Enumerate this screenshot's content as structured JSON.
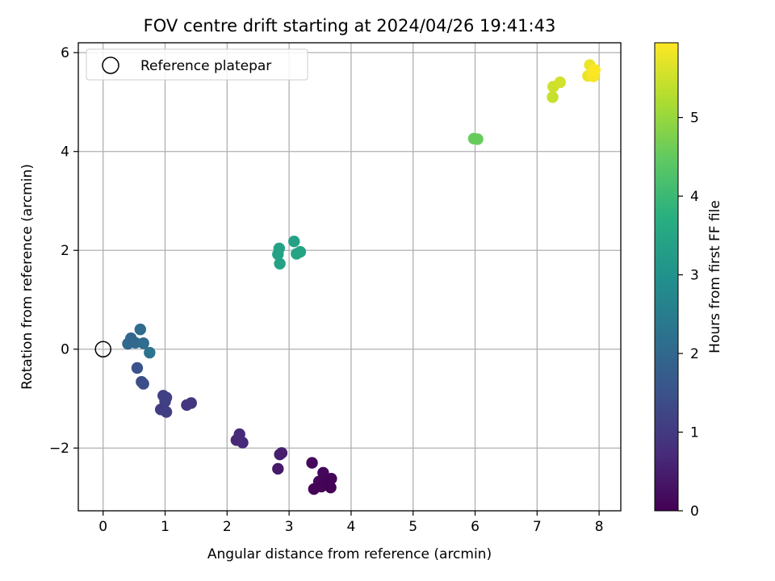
{
  "chart_data": {
    "type": "scatter",
    "title": "FOV centre drift starting at 2024/04/26 19:41:43",
    "xlabel": "Angular distance from reference (arcmin)",
    "ylabel": "Rotation from reference (arcmin)",
    "xlim": [
      -0.4,
      8.35
    ],
    "ylim": [
      -3.27,
      6.2
    ],
    "xticks": [
      0,
      1,
      2,
      3,
      4,
      5,
      6,
      7,
      8
    ],
    "yticks": [
      -2,
      0,
      2,
      4,
      6
    ],
    "grid": true,
    "legend": {
      "position": "upper-left",
      "entries": [
        "Reference platepar"
      ]
    },
    "reference_point": {
      "label": "Reference platepar",
      "x": 0,
      "y": 0,
      "marker": "hollow-circle"
    },
    "colorbar": {
      "label": "Hours from first FF file",
      "range": [
        0,
        5.95
      ],
      "ticks": [
        0,
        1,
        2,
        3,
        4,
        5
      ],
      "colormap": "viridis"
    },
    "series": [
      {
        "points": [
          {
            "x": 3.37,
            "y": -2.3,
            "h": 0.15
          },
          {
            "x": 3.4,
            "y": -2.83,
            "h": 0.05
          },
          {
            "x": 3.48,
            "y": -2.68,
            "h": 0.1
          },
          {
            "x": 3.52,
            "y": -2.78,
            "h": 0.05
          },
          {
            "x": 3.55,
            "y": -2.5,
            "h": 0.1
          },
          {
            "x": 3.58,
            "y": -2.72,
            "h": 0.05
          },
          {
            "x": 3.67,
            "y": -2.8,
            "h": 0.02
          },
          {
            "x": 3.68,
            "y": -2.62,
            "h": 0.05
          },
          {
            "x": 2.82,
            "y": -2.42,
            "h": 0.4
          },
          {
            "x": 2.85,
            "y": -2.13,
            "h": 0.5
          },
          {
            "x": 2.88,
            "y": -2.1,
            "h": 0.5
          },
          {
            "x": 2.15,
            "y": -1.84,
            "h": 0.65
          },
          {
            "x": 2.2,
            "y": -1.72,
            "h": 0.7
          },
          {
            "x": 2.25,
            "y": -1.89,
            "h": 0.7
          },
          {
            "x": 1.35,
            "y": -1.13,
            "h": 0.95
          },
          {
            "x": 1.42,
            "y": -1.09,
            "h": 0.95
          },
          {
            "x": 0.93,
            "y": -1.22,
            "h": 1.05
          },
          {
            "x": 0.97,
            "y": -0.94,
            "h": 1.1
          },
          {
            "x": 1.0,
            "y": -1.06,
            "h": 1.1
          },
          {
            "x": 1.02,
            "y": -1.27,
            "h": 1.1
          },
          {
            "x": 1.02,
            "y": -0.98,
            "h": 1.15
          },
          {
            "x": 0.62,
            "y": -0.66,
            "h": 1.4
          },
          {
            "x": 0.65,
            "y": -0.7,
            "h": 1.4
          },
          {
            "x": 0.55,
            "y": -0.38,
            "h": 1.5
          },
          {
            "x": 0.4,
            "y": 0.11,
            "h": 2.0
          },
          {
            "x": 0.45,
            "y": 0.22,
            "h": 1.95
          },
          {
            "x": 0.52,
            "y": 0.13,
            "h": 2.0
          },
          {
            "x": 0.6,
            "y": 0.4,
            "h": 2.1
          },
          {
            "x": 0.65,
            "y": 0.12,
            "h": 2.1
          },
          {
            "x": 0.75,
            "y": -0.07,
            "h": 2.25
          },
          {
            "x": 2.82,
            "y": 1.92,
            "h": 3.4
          },
          {
            "x": 2.84,
            "y": 2.04,
            "h": 3.4
          },
          {
            "x": 2.85,
            "y": 1.73,
            "h": 3.4
          },
          {
            "x": 3.08,
            "y": 2.18,
            "h": 3.4
          },
          {
            "x": 3.12,
            "y": 1.93,
            "h": 3.45
          },
          {
            "x": 3.18,
            "y": 1.97,
            "h": 3.45
          },
          {
            "x": 5.98,
            "y": 4.26,
            "h": 4.55
          },
          {
            "x": 6.04,
            "y": 4.25,
            "h": 4.55
          },
          {
            "x": 7.25,
            "y": 5.1,
            "h": 5.45
          },
          {
            "x": 7.26,
            "y": 5.31,
            "h": 5.5
          },
          {
            "x": 7.37,
            "y": 5.4,
            "h": 5.55
          },
          {
            "x": 7.82,
            "y": 5.53,
            "h": 5.75
          },
          {
            "x": 7.85,
            "y": 5.75,
            "h": 5.8
          },
          {
            "x": 7.88,
            "y": 5.58,
            "h": 5.85
          },
          {
            "x": 7.91,
            "y": 5.52,
            "h": 5.9
          },
          {
            "x": 7.93,
            "y": 5.65,
            "h": 5.95
          }
        ]
      }
    ]
  }
}
